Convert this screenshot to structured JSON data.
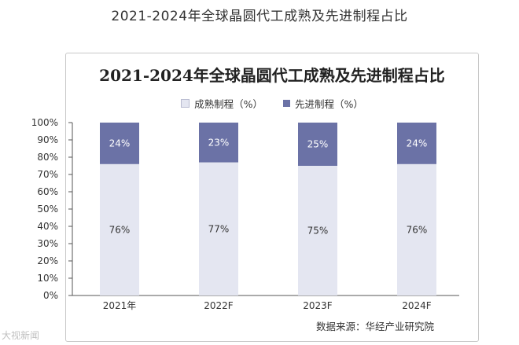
{
  "page_title": "2021-2024年全球晶圆代工成熟及先进制程占比",
  "chart_data": {
    "type": "bar",
    "stacked": true,
    "title": "2021-2024年全球晶圆代工成熟及先进制程占比",
    "categories": [
      "2021年",
      "2022F",
      "2023F",
      "2024F"
    ],
    "series": [
      {
        "name": "成熟制程（%）",
        "values": [
          76,
          77,
          75,
          76
        ],
        "labels": [
          "76%",
          "77%",
          "75%",
          "76%"
        ],
        "color": "#e4e6f1",
        "label_color": "#333333"
      },
      {
        "name": "先进制程（%）",
        "values": [
          24,
          23,
          25,
          24
        ],
        "labels": [
          "24%",
          "23%",
          "25%",
          "24%"
        ],
        "color": "#6b72a6",
        "label_color": "#ffffff"
      }
    ],
    "ylim": [
      0,
      100
    ],
    "yticks": [
      "0%",
      "10%",
      "20%",
      "30%",
      "40%",
      "50%",
      "60%",
      "70%",
      "80%",
      "90%",
      "100%"
    ],
    "legend_position": "top-center",
    "grid": false
  },
  "source_text": "数据来源：华经产业研究院",
  "watermark_text": "大视新闻"
}
